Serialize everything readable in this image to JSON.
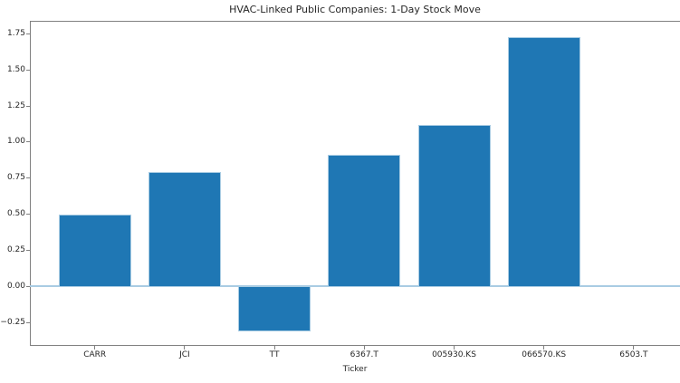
{
  "chart_data": {
    "type": "bar",
    "title": "HVAC-Linked Public Companies: 1-Day Stock Move",
    "xlabel": "Ticker",
    "ylabel": "",
    "categories": [
      "CARR",
      "JCI",
      "TT",
      "6367.T",
      "005930.KS",
      "066570.KS",
      "6503.T"
    ],
    "values": [
      0.5,
      0.79,
      -0.31,
      0.91,
      1.12,
      1.73,
      0.0
    ],
    "yticks": [
      -0.25,
      0.0,
      0.25,
      0.5,
      0.75,
      1.0,
      1.25,
      1.5,
      1.75
    ],
    "ylim": [
      -0.41,
      1.84
    ],
    "grid": false,
    "legend_position": "none",
    "colors": {
      "bar_fill": "#1f77b4",
      "bar_edge": "#a9cce3",
      "zero_line": "#a9cce3",
      "axis": "#808080",
      "text": "#262626",
      "background": "#ffffff"
    }
  }
}
